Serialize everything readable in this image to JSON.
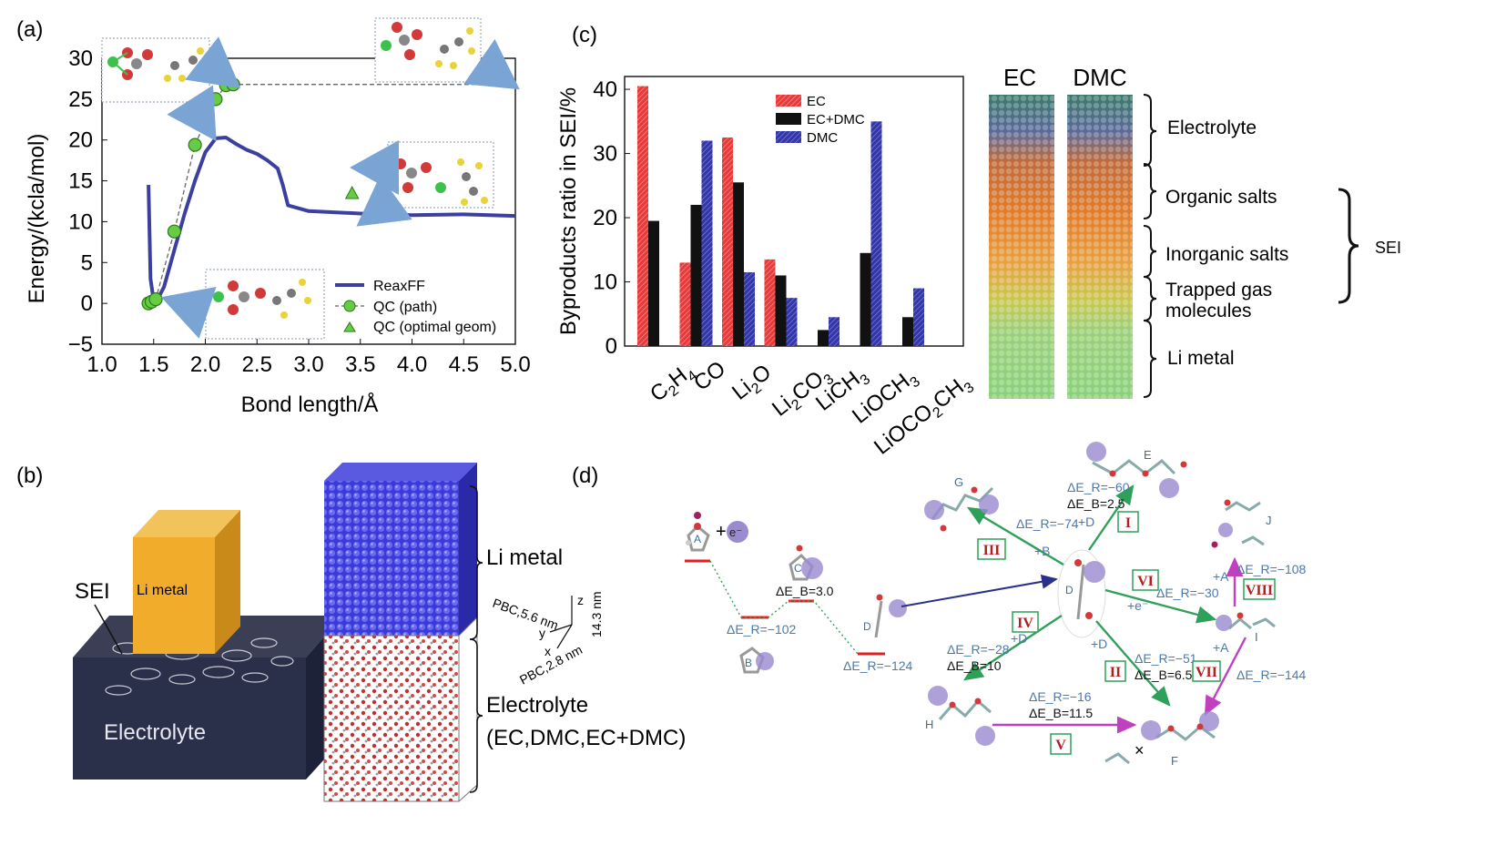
{
  "panel_labels": {
    "a": "(a)",
    "b": "(b)",
    "c": "(c)",
    "d": "(d)"
  },
  "chart_data": [
    {
      "type": "line",
      "panel": "a",
      "xlabel": "Bond length/Å",
      "ylabel": "Energy/(kcla/mol)",
      "xlim": [
        1.0,
        5.0
      ],
      "ylim": [
        -5,
        30
      ],
      "xticks": [
        "1.0",
        "1.5",
        "2.0",
        "2.5",
        "3.0",
        "3.5",
        "4.0",
        "4.5",
        "5.0"
      ],
      "yticks": [
        "30",
        "25",
        "20",
        "15",
        "10",
        "5",
        "0",
        "−5"
      ],
      "legend": [
        "ReaxFF",
        "QC (path)",
        "QC (optimal geom)"
      ],
      "series": [
        {
          "name": "ReaxFF",
          "x": [
            1.45,
            1.47,
            1.5,
            1.55,
            1.6,
            1.7,
            1.8,
            1.9,
            2.0,
            2.1,
            2.2,
            2.3,
            2.4,
            2.5,
            2.6,
            2.7,
            2.75,
            2.8,
            3.0,
            3.5,
            4.0,
            4.5,
            5.0
          ],
          "y": [
            14.5,
            3,
            0.3,
            0.8,
            2,
            6.5,
            11,
            15,
            18.5,
            20.2,
            20.3,
            19.5,
            18.8,
            18.3,
            17.5,
            16.5,
            14.5,
            12,
            11.3,
            11,
            10.8,
            10.9,
            10.7
          ]
        },
        {
          "name": "QC (path)",
          "x": [
            1.45,
            1.48,
            1.52,
            1.7,
            1.9,
            2.1,
            2.2,
            2.27,
            2.3,
            5.0
          ],
          "y": [
            0,
            0.2,
            0.5,
            8.8,
            19.4,
            25,
            26.7,
            26.8,
            26.8,
            26.8
          ]
        },
        {
          "name": "QC (optimal geom)",
          "x": [
            3.42
          ],
          "y": [
            13.5
          ]
        }
      ]
    },
    {
      "type": "bar",
      "panel": "c",
      "ylabel": "Byproducts ratio in SEI/%",
      "ylim": [
        0,
        42
      ],
      "yticks": [
        "0",
        "10",
        "20",
        "30",
        "40"
      ],
      "categories": [
        "C2H4",
        "CO",
        "Li2O",
        "Li2CO3",
        "LiCH3",
        "LiOCH3",
        "LiOCO2CH3"
      ],
      "series": [
        {
          "name": "EC",
          "values": [
            40.5,
            13,
            32.5,
            13.5,
            0,
            0,
            0
          ]
        },
        {
          "name": "EC+DMC",
          "values": [
            19.5,
            22,
            25.5,
            11,
            2.5,
            14.5,
            4.5
          ]
        },
        {
          "name": "DMC",
          "values": [
            0,
            32,
            11.5,
            7.5,
            4.5,
            35,
            9
          ]
        }
      ]
    }
  ],
  "panel_c_legend": [
    "EC",
    "EC+DMC",
    "DMC"
  ],
  "panel_c_snapshots": {
    "col1": "EC",
    "col2": "DMC",
    "layers": [
      "Electrolyte",
      "Organic salts",
      "Inorganic salts",
      "Trapped gas",
      "molecules",
      "Li metal"
    ],
    "sei": "SEI"
  },
  "panel_b": {
    "li_metal_block": "Li metal",
    "sei": "SEI",
    "electrolyte_block": "Electrolyte",
    "li_metal_right": "Li metal",
    "electrolyte_right": "Electrolyte",
    "electrolyte_list": "(EC,DMC,EC+DMC)",
    "pbc1": "PBC,5.6 nm",
    "pbc2": "PBC,2.8 nm",
    "height": "14.3 nm",
    "axes": {
      "x": "x",
      "y": "y",
      "z": "z"
    }
  },
  "panel_d": {
    "species": {
      "A": "A",
      "B": "B",
      "C": "C",
      "D1": "D",
      "D2": "D",
      "E": "E",
      "F": "F",
      "G": "G",
      "H": "H",
      "I": "I",
      "J": "J"
    },
    "electron": "e⁻",
    "plus": "+",
    "energies": {
      "er_102": "ΔE_R=−102",
      "eb_30": "ΔE_B=3.0",
      "er_124": "ΔE_R=−124",
      "er_60": "ΔE_R=−60",
      "eb_25": "ΔE_B=2.5",
      "er_74": "ΔE_R=−74",
      "er_108": "ΔE_R=−108",
      "er_30": "ΔE_R=−30",
      "er_28": "ΔE_R=−28",
      "eb_10": "ΔE_B=10",
      "er_51": "ΔE_R=−51",
      "eb_65": "ΔE_B=6.5",
      "er_144": "ΔE_R=−144",
      "er_16": "ΔE_R=−16",
      "eb_115": "ΔE_B=11.5"
    },
    "reagents": {
      "d_I": "+D",
      "b_III": "+B",
      "a_VIII": "+A",
      "e_VI": "+e⁻",
      "d_IV": "+D",
      "d_II": "+D",
      "a_VII": "+A"
    },
    "steps": [
      "I",
      "II",
      "III",
      "IV",
      "V",
      "VI",
      "VII",
      "VIII"
    ]
  }
}
